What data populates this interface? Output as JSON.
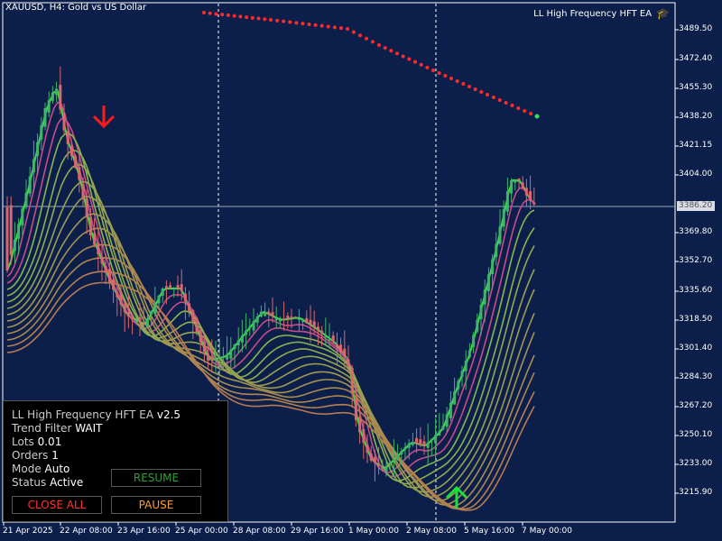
{
  "chart": {
    "title": "XAUUSD, H4:  Gold vs US Dollar",
    "ea_name": "LL High Frequency HFT EA",
    "current_price": "3386.20",
    "price_axis": [
      "3489.50",
      "3472.40",
      "3455.30",
      "3438.20",
      "3421.15",
      "3404.00",
      "3369.80",
      "3352.70",
      "3335.60",
      "3318.50",
      "3301.40",
      "3284.30",
      "3267.20",
      "3250.10",
      "3233.00",
      "3215.90"
    ],
    "time_axis": [
      "21 Apr 2025",
      "22 Apr 08:00",
      "23 Apr 16:00",
      "25 Apr 00:00",
      "28 Apr 08:00",
      "29 Apr 16:00",
      "1 May 00:00",
      "2 May 08:00",
      "5 May 16:00",
      "7 May 00:00"
    ],
    "colors": {
      "background": "#0c1f4a",
      "bull": "#3fb36a",
      "bear": "#d9676b",
      "sell_arrow": "#ff1a1a",
      "buy_arrow": "#19e03c",
      "dots": "#ff2a2a"
    }
  },
  "panel": {
    "title": "LL High Frequency HFT EA",
    "version": "v2.5",
    "trend_filter_label": "Trend Filter",
    "trend_filter_value": "WAIT",
    "lots_label": "Lots",
    "lots_value": "0.01",
    "orders_label": "Orders",
    "orders_value": "1",
    "mode_label": "Mode",
    "mode_value": "Auto",
    "status_label": "Status",
    "status_value": "Active",
    "resume_label": "RESUME",
    "close_all_label": "CLOSE ALL",
    "pause_label": "PAUSE"
  }
}
